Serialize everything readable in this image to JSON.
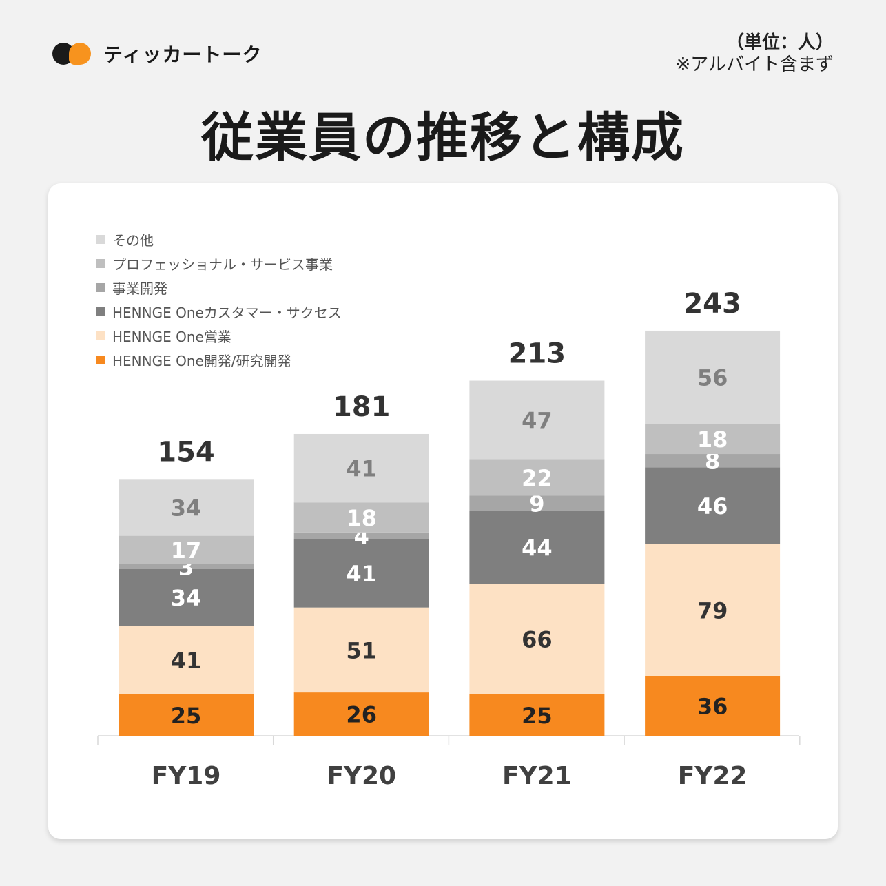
{
  "header": {
    "logo_text": "ティッカートーク",
    "unit_note": "（単位：人）",
    "sub_note": "※アルバイト含まず",
    "title": "従業員の推移と構成"
  },
  "colors": {
    "background": "#f2f2f2",
    "card": "#ffffff",
    "brand_orange": "#f7931e"
  },
  "legend": [
    {
      "label": "その他",
      "color": "#d9d9d9"
    },
    {
      "label": "プロフェッショナル・サービス事業",
      "color": "#bfbfbf"
    },
    {
      "label": "事業開発",
      "color": "#a6a6a6"
    },
    {
      "label": "HENNGE Oneカスタマー・サクセス",
      "color": "#7f7f7f"
    },
    {
      "label": "HENNGE One営業",
      "color": "#fde1c4"
    },
    {
      "label": "HENNGE One開発/研究開発",
      "color": "#f7891f"
    }
  ],
  "chart_data": {
    "type": "bar",
    "stacked": true,
    "categories": [
      "FY19",
      "FY20",
      "FY21",
      "FY22"
    ],
    "totals": [
      154,
      181,
      213,
      243
    ],
    "series": [
      {
        "name": "HENNGE One開発/研究開発",
        "values": [
          25,
          26,
          25,
          36
        ],
        "color": "#f7891f",
        "label_color": "#222222"
      },
      {
        "name": "HENNGE One営業",
        "values": [
          41,
          51,
          66,
          79
        ],
        "color": "#fde1c4",
        "label_color": "#333333"
      },
      {
        "name": "HENNGE Oneカスタマー・サクセス",
        "values": [
          34,
          41,
          44,
          46
        ],
        "color": "#7f7f7f",
        "label_color": "#ffffff"
      },
      {
        "name": "事業開発",
        "values": [
          3,
          4,
          9,
          8
        ],
        "color": "#a6a6a6",
        "label_color": "#ffffff"
      },
      {
        "name": "プロフェッショナル・サービス事業",
        "values": [
          17,
          18,
          22,
          18
        ],
        "color": "#bfbfbf",
        "label_color": "#ffffff"
      },
      {
        "name": "その他",
        "values": [
          34,
          41,
          47,
          56
        ],
        "color": "#d9d9d9",
        "label_color": "#7f7f7f"
      }
    ],
    "ylim": [
      0,
      300
    ],
    "legend_position": "top-left"
  }
}
